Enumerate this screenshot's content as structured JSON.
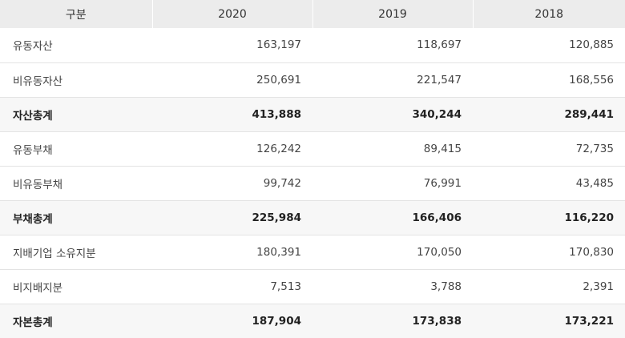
{
  "table": {
    "headers": [
      "구분",
      "2020",
      "2019",
      "2018"
    ],
    "rows": [
      {
        "label": "유동자산",
        "values": [
          "163,197",
          "118,697",
          "120,885"
        ],
        "total": false
      },
      {
        "label": "비유동자산",
        "values": [
          "250,691",
          "221,547",
          "168,556"
        ],
        "total": false
      },
      {
        "label": "자산총계",
        "values": [
          "413,888",
          "340,244",
          "289,441"
        ],
        "total": true
      },
      {
        "label": "유동부채",
        "values": [
          "126,242",
          "89,415",
          "72,735"
        ],
        "total": false
      },
      {
        "label": "비유동부채",
        "values": [
          "99,742",
          "76,991",
          "43,485"
        ],
        "total": false
      },
      {
        "label": "부채총계",
        "values": [
          "225,984",
          "166,406",
          "116,220"
        ],
        "total": true
      },
      {
        "label": "지배기업 소유지분",
        "values": [
          "180,391",
          "170,050",
          "170,830"
        ],
        "total": false
      },
      {
        "label": "비지배지분",
        "values": [
          "7,513",
          "3,788",
          "2,391"
        ],
        "total": false
      },
      {
        "label": "자본총계",
        "values": [
          "187,904",
          "173,838",
          "173,221"
        ],
        "total": true
      }
    ]
  }
}
